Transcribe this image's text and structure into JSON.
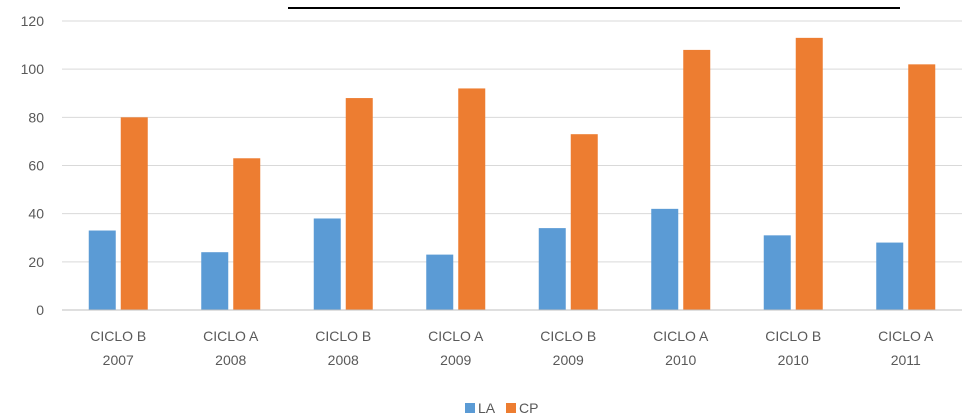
{
  "chart_data": {
    "type": "bar",
    "categories": [
      [
        "CICLO B",
        "2007"
      ],
      [
        "CICLO A",
        "2008"
      ],
      [
        "CICLO B",
        "2008"
      ],
      [
        "CICLO A",
        "2009"
      ],
      [
        "CICLO B",
        "2009"
      ],
      [
        "CICLO A",
        "2010"
      ],
      [
        "CICLO B",
        "2010"
      ],
      [
        "CICLO A",
        "2011"
      ]
    ],
    "series": [
      {
        "name": "LA",
        "color": "#5B9BD5",
        "values": [
          33,
          24,
          38,
          23,
          34,
          42,
          31,
          28
        ]
      },
      {
        "name": "CP",
        "color": "#ED7D31",
        "values": [
          80,
          63,
          88,
          92,
          73,
          108,
          113,
          102
        ]
      }
    ],
    "ylim": [
      0,
      120
    ],
    "yticks": [
      0,
      20,
      40,
      60,
      80,
      100,
      120
    ],
    "grid": true,
    "legend_position": "bottom-center",
    "title": "",
    "xlabel": "",
    "ylabel": ""
  }
}
